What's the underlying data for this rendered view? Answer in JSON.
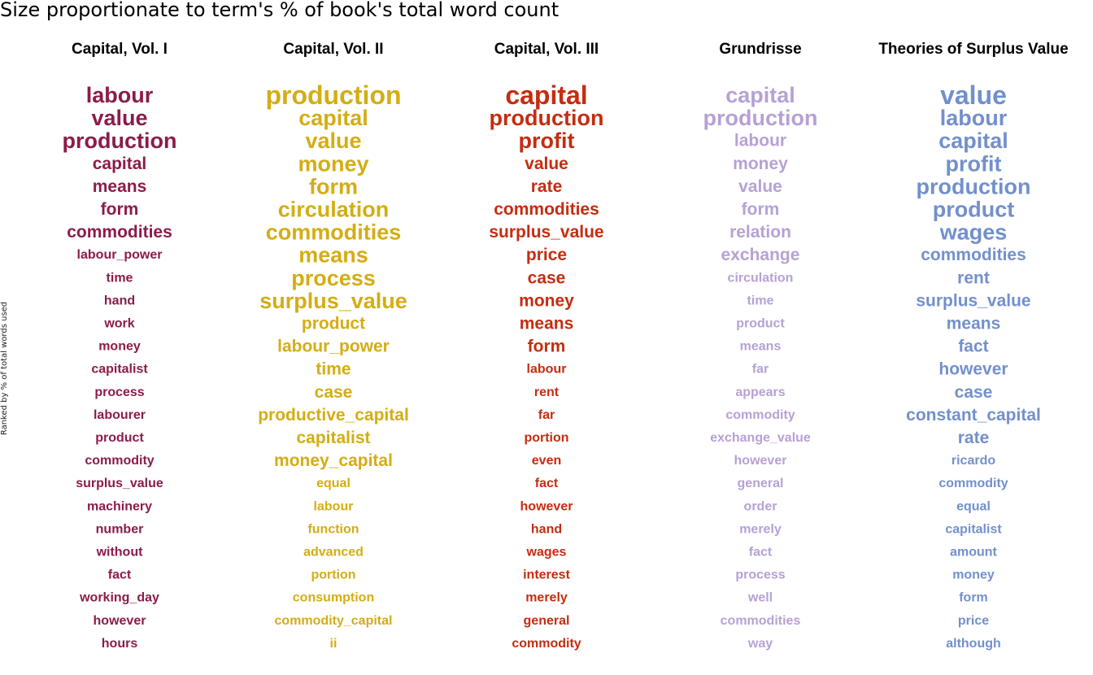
{
  "chart_data": {
    "type": "table",
    "title": "Size proportionate to term's % of book's total word count",
    "ylabel": "Ranked by % of total words used",
    "columns": [
      {
        "name": "Capital, Vol. I",
        "color": "#8b1c4a",
        "terms": [
          {
            "term": "labour",
            "size": 5
          },
          {
            "term": "value",
            "size": 5
          },
          {
            "term": "production",
            "size": 5
          },
          {
            "term": "capital",
            "size": 4
          },
          {
            "term": "means",
            "size": 4
          },
          {
            "term": "form",
            "size": 4
          },
          {
            "term": "commodities",
            "size": 4
          },
          {
            "term": "labour_power",
            "size": 3
          },
          {
            "term": "time",
            "size": 3
          },
          {
            "term": "hand",
            "size": 3
          },
          {
            "term": "work",
            "size": 3
          },
          {
            "term": "money",
            "size": 3
          },
          {
            "term": "capitalist",
            "size": 3
          },
          {
            "term": "process",
            "size": 3
          },
          {
            "term": "labourer",
            "size": 3
          },
          {
            "term": "product",
            "size": 3
          },
          {
            "term": "commodity",
            "size": 3
          },
          {
            "term": "surplus_value",
            "size": 3
          },
          {
            "term": "machinery",
            "size": 3
          },
          {
            "term": "number",
            "size": 3
          },
          {
            "term": "without",
            "size": 3
          },
          {
            "term": "fact",
            "size": 3
          },
          {
            "term": "working_day",
            "size": 3
          },
          {
            "term": "however",
            "size": 3
          },
          {
            "term": "hours",
            "size": 3
          }
        ]
      },
      {
        "name": "Capital, Vol. II",
        "color": "#d4ad14",
        "terms": [
          {
            "term": "production",
            "size": 6
          },
          {
            "term": "capital",
            "size": 5
          },
          {
            "term": "value",
            "size": 5
          },
          {
            "term": "money",
            "size": 5
          },
          {
            "term": "form",
            "size": 5
          },
          {
            "term": "circulation",
            "size": 5
          },
          {
            "term": "commodities",
            "size": 5
          },
          {
            "term": "means",
            "size": 5
          },
          {
            "term": "process",
            "size": 5
          },
          {
            "term": "surplus_value",
            "size": 5
          },
          {
            "term": "product",
            "size": 4
          },
          {
            "term": "labour_power",
            "size": 4
          },
          {
            "term": "time",
            "size": 4
          },
          {
            "term": "case",
            "size": 4
          },
          {
            "term": "productive_capital",
            "size": 4
          },
          {
            "term": "capitalist",
            "size": 4
          },
          {
            "term": "money_capital",
            "size": 4
          },
          {
            "term": "equal",
            "size": 3
          },
          {
            "term": "labour",
            "size": 3
          },
          {
            "term": "function",
            "size": 3
          },
          {
            "term": "advanced",
            "size": 3
          },
          {
            "term": "portion",
            "size": 3
          },
          {
            "term": "consumption",
            "size": 3
          },
          {
            "term": "commodity_capital",
            "size": 3
          },
          {
            "term": "ii",
            "size": 3
          }
        ]
      },
      {
        "name": "Capital, Vol. III",
        "color": "#c42d10",
        "terms": [
          {
            "term": "capital",
            "size": 6
          },
          {
            "term": "production",
            "size": 5
          },
          {
            "term": "profit",
            "size": 5
          },
          {
            "term": "value",
            "size": 4
          },
          {
            "term": "rate",
            "size": 4
          },
          {
            "term": "commodities",
            "size": 4
          },
          {
            "term": "surplus_value",
            "size": 4
          },
          {
            "term": "price",
            "size": 4
          },
          {
            "term": "case",
            "size": 4
          },
          {
            "term": "money",
            "size": 4
          },
          {
            "term": "means",
            "size": 4
          },
          {
            "term": "form",
            "size": 4
          },
          {
            "term": "labour",
            "size": 3
          },
          {
            "term": "rent",
            "size": 3
          },
          {
            "term": "far",
            "size": 3
          },
          {
            "term": "portion",
            "size": 3
          },
          {
            "term": "even",
            "size": 3
          },
          {
            "term": "fact",
            "size": 3
          },
          {
            "term": "however",
            "size": 3
          },
          {
            "term": "hand",
            "size": 3
          },
          {
            "term": "wages",
            "size": 3
          },
          {
            "term": "interest",
            "size": 3
          },
          {
            "term": "merely",
            "size": 3
          },
          {
            "term": "general",
            "size": 3
          },
          {
            "term": "commodity",
            "size": 3
          }
        ]
      },
      {
        "name": "Grundrisse",
        "color": "#b6a1d4",
        "terms": [
          {
            "term": "capital",
            "size": 5
          },
          {
            "term": "production",
            "size": 5
          },
          {
            "term": "labour",
            "size": 4
          },
          {
            "term": "money",
            "size": 4
          },
          {
            "term": "value",
            "size": 4
          },
          {
            "term": "form",
            "size": 4
          },
          {
            "term": "relation",
            "size": 4
          },
          {
            "term": "exchange",
            "size": 4
          },
          {
            "term": "circulation",
            "size": 3
          },
          {
            "term": "time",
            "size": 3
          },
          {
            "term": "product",
            "size": 3
          },
          {
            "term": "means",
            "size": 3
          },
          {
            "term": "far",
            "size": 3
          },
          {
            "term": "appears",
            "size": 3
          },
          {
            "term": "commodity",
            "size": 3
          },
          {
            "term": "exchange_value",
            "size": 3
          },
          {
            "term": "however",
            "size": 3
          },
          {
            "term": "general",
            "size": 3
          },
          {
            "term": "order",
            "size": 3
          },
          {
            "term": "merely",
            "size": 3
          },
          {
            "term": "fact",
            "size": 3
          },
          {
            "term": "process",
            "size": 3
          },
          {
            "term": "well",
            "size": 3
          },
          {
            "term": "commodities",
            "size": 3
          },
          {
            "term": "way",
            "size": 3
          }
        ]
      },
      {
        "name": "Theories of Surplus Value",
        "color": "#7290cc",
        "terms": [
          {
            "term": "value",
            "size": 6
          },
          {
            "term": "labour",
            "size": 5
          },
          {
            "term": "capital",
            "size": 5
          },
          {
            "term": "profit",
            "size": 5
          },
          {
            "term": "production",
            "size": 5
          },
          {
            "term": "product",
            "size": 5
          },
          {
            "term": "wages",
            "size": 5
          },
          {
            "term": "commodities",
            "size": 4
          },
          {
            "term": "rent",
            "size": 4
          },
          {
            "term": "surplus_value",
            "size": 4
          },
          {
            "term": "means",
            "size": 4
          },
          {
            "term": "fact",
            "size": 4
          },
          {
            "term": "however",
            "size": 4
          },
          {
            "term": "case",
            "size": 4
          },
          {
            "term": "constant_capital",
            "size": 4
          },
          {
            "term": "rate",
            "size": 4
          },
          {
            "term": "ricardo",
            "size": 3
          },
          {
            "term": "commodity",
            "size": 3
          },
          {
            "term": "equal",
            "size": 3
          },
          {
            "term": "capitalist",
            "size": 3
          },
          {
            "term": "amount",
            "size": 3
          },
          {
            "term": "money",
            "size": 3
          },
          {
            "term": "form",
            "size": 3
          },
          {
            "term": "price",
            "size": 3
          },
          {
            "term": "although",
            "size": 3
          }
        ]
      }
    ]
  }
}
